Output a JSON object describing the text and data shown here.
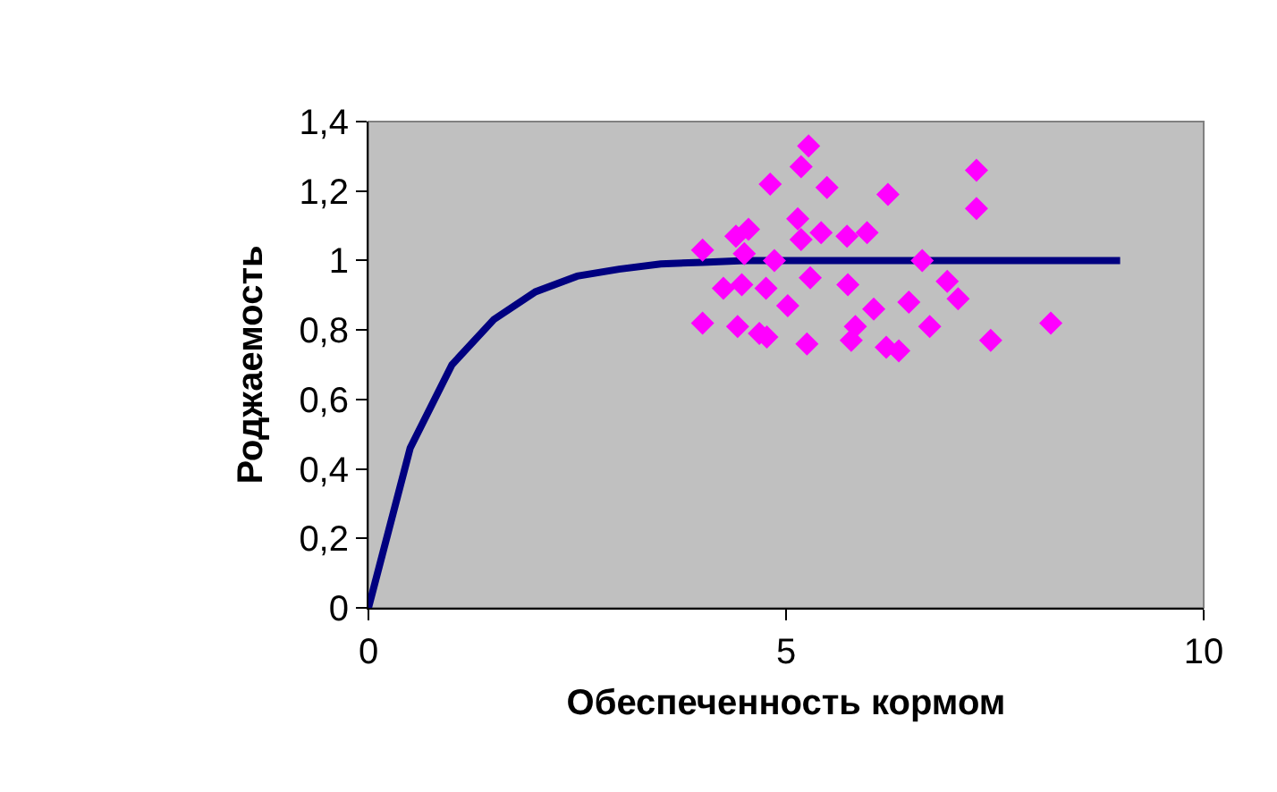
{
  "chart_data": {
    "type": "scatter",
    "xlabel": "Обеспеченность кормом",
    "ylabel": "Роджаемость",
    "xlim": [
      0,
      10
    ],
    "xticks": [
      0,
      5,
      10
    ],
    "ylim": [
      0,
      1.4
    ],
    "yticks": [
      0,
      {
        "value": 0.2,
        "label": "0,2"
      },
      {
        "value": 0.4,
        "label": "0,4"
      },
      {
        "value": 0.6,
        "label": "0,6"
      },
      {
        "value": 0.8,
        "label": "0,8"
      },
      1,
      {
        "value": 1.2,
        "label": "1,2"
      },
      {
        "value": 1.4,
        "label": "1,4"
      }
    ],
    "grid": false,
    "series": [
      {
        "marker": "diamond",
        "color": "#ff00ff",
        "x": [
          4.0,
          4.0,
          4.25,
          4.4,
          4.55,
          4.47,
          4.5,
          4.42,
          4.68,
          4.77,
          4.76,
          4.81,
          4.86,
          5.02,
          5.14,
          5.18,
          5.18,
          5.27,
          5.42,
          5.49,
          5.29,
          5.25,
          5.73,
          5.74,
          5.83,
          5.78,
          5.97,
          6.22,
          6.05,
          6.2,
          6.35,
          6.47,
          6.63,
          6.72,
          6.93,
          7.06,
          7.28,
          7.28,
          7.45,
          8.17
        ],
        "values": [
          1.03,
          0.82,
          0.92,
          1.07,
          1.09,
          0.93,
          1.02,
          0.81,
          0.79,
          0.78,
          0.92,
          1.22,
          1.0,
          0.87,
          1.12,
          1.06,
          1.27,
          1.33,
          1.08,
          1.21,
          0.95,
          0.76,
          1.07,
          0.93,
          0.81,
          0.77,
          1.08,
          1.19,
          0.86,
          0.75,
          0.74,
          0.88,
          1.0,
          0.81,
          0.94,
          0.89,
          1.26,
          1.15,
          0.77,
          0.82
        ]
      },
      {
        "type": "line",
        "marker": "none",
        "line_style": "solid",
        "color": "#000080",
        "x": [
          0,
          0.5,
          1,
          1.5,
          2,
          2.5,
          3,
          3.5,
          4,
          4.5,
          9
        ],
        "values": [
          0,
          0.46,
          0.7,
          0.83,
          0.91,
          0.955,
          0.975,
          0.99,
          0.995,
          1.0,
          1.0
        ]
      }
    ]
  }
}
